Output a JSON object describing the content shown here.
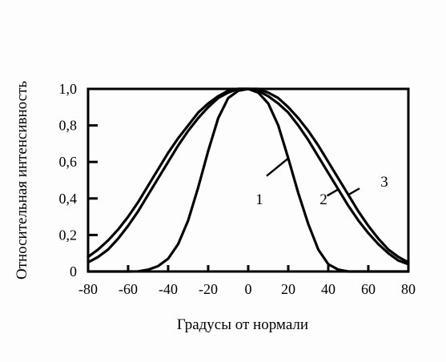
{
  "chart_data": {
    "type": "line",
    "title": "",
    "xlabel": "Градусы от нормали",
    "ylabel": "Относительная интенсивность",
    "xlim": [
      -80,
      80
    ],
    "ylim": [
      0,
      1.0
    ],
    "x_ticks": [
      -80,
      -60,
      -40,
      -20,
      0,
      20,
      40,
      60,
      80
    ],
    "x_tick_labels": [
      "-80",
      "-60",
      "-40",
      "-20",
      "0",
      "20",
      "40",
      "60",
      "80"
    ],
    "y_ticks": [
      0,
      0.2,
      0.4,
      0.6,
      0.8,
      1.0
    ],
    "y_tick_labels": [
      "0",
      "0,2",
      "0,4",
      "0,6",
      "0,8",
      "1,0"
    ],
    "grid": false,
    "x": [
      -80,
      -75,
      -70,
      -65,
      -60,
      -55,
      -50,
      -45,
      -40,
      -35,
      -30,
      -25,
      -20,
      -15,
      -10,
      -5,
      0,
      5,
      10,
      15,
      20,
      25,
      30,
      35,
      40,
      45,
      50,
      55,
      60,
      65,
      70,
      75,
      80
    ],
    "series": [
      {
        "name": "1",
        "values": [
          0,
          0,
          0,
          0,
          0,
          0.001,
          0.01,
          0.03,
          0.07,
          0.15,
          0.28,
          0.46,
          0.66,
          0.84,
          0.95,
          0.99,
          1.0,
          0.98,
          0.92,
          0.8,
          0.62,
          0.43,
          0.26,
          0.12,
          0.04,
          0.01,
          0,
          0,
          0,
          0,
          0,
          0,
          0
        ]
      },
      {
        "name": "2",
        "values": [
          0.05,
          0.08,
          0.12,
          0.18,
          0.25,
          0.33,
          0.42,
          0.51,
          0.6,
          0.69,
          0.77,
          0.84,
          0.9,
          0.95,
          0.98,
          1.0,
          1.0,
          0.99,
          0.96,
          0.92,
          0.87,
          0.8,
          0.72,
          0.63,
          0.54,
          0.45,
          0.36,
          0.28,
          0.21,
          0.15,
          0.1,
          0.06,
          0.04
        ]
      },
      {
        "name": "3",
        "values": [
          0.08,
          0.12,
          0.17,
          0.23,
          0.3,
          0.38,
          0.47,
          0.56,
          0.65,
          0.73,
          0.8,
          0.87,
          0.92,
          0.96,
          0.99,
          1.0,
          1.0,
          1.0,
          0.98,
          0.95,
          0.9,
          0.84,
          0.77,
          0.69,
          0.6,
          0.51,
          0.42,
          0.33,
          0.25,
          0.18,
          0.12,
          0.08,
          0.05
        ]
      }
    ],
    "curve_labels": [
      "1",
      "2",
      "3"
    ]
  }
}
